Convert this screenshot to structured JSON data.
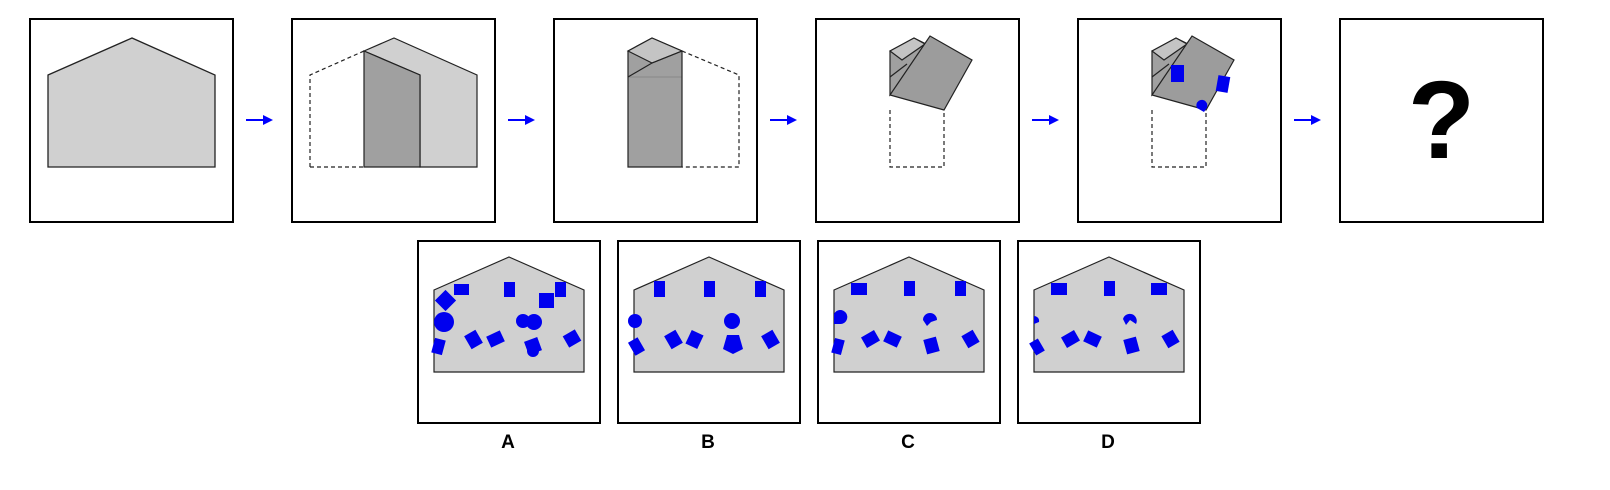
{
  "colors": {
    "paper_light": "#d0d0d0",
    "paper_dark": "#a0a0a0",
    "paper_folded": "#9c9c9c",
    "hole_blue": "#0000ee",
    "arrow_blue": "#0000ff",
    "outline": "#222222"
  },
  "sequence": {
    "step_count": 6,
    "unknown_symbol": "?"
  },
  "options": [
    {
      "label": "A"
    },
    {
      "label": "B"
    },
    {
      "label": "C"
    },
    {
      "label": "D"
    }
  ],
  "icons": {
    "arrow": "arrow-right-icon"
  }
}
